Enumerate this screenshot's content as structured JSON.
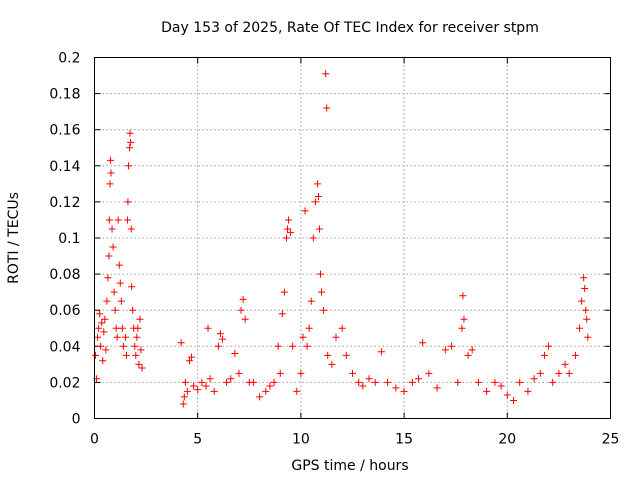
{
  "chart_data": {
    "type": "scatter",
    "title": "Day 153 of 2025, Rate Of TEC Index for receiver stpm",
    "xlabel": "GPS time / hours",
    "ylabel": "ROTI / TECUs",
    "xlim": [
      0,
      25
    ],
    "ylim": [
      0,
      0.2
    ],
    "xticks": [
      0,
      5,
      10,
      15,
      20,
      25
    ],
    "yticks": [
      0,
      0.02,
      0.04,
      0.06,
      0.08,
      0.1,
      0.12,
      0.14,
      0.16,
      0.18,
      0.2
    ],
    "grid": true,
    "legend": "none",
    "marker": "plus",
    "color": "#ff0000",
    "series": [
      {
        "points": [
          [
            0.05,
            0.035
          ],
          [
            0.1,
            0.022
          ],
          [
            0.15,
            0.045
          ],
          [
            0.2,
            0.05
          ],
          [
            0.25,
            0.058
          ],
          [
            0.3,
            0.04
          ],
          [
            0.35,
            0.053
          ],
          [
            0.4,
            0.032
          ],
          [
            0.45,
            0.048
          ],
          [
            0.5,
            0.055
          ],
          [
            0.55,
            0.038
          ],
          [
            0.6,
            0.065
          ],
          [
            0.65,
            0.078
          ],
          [
            0.7,
            0.09
          ],
          [
            0.72,
            0.11
          ],
          [
            0.75,
            0.13
          ],
          [
            0.78,
            0.143
          ],
          [
            0.8,
            0.136
          ],
          [
            0.85,
            0.105
          ],
          [
            0.9,
            0.095
          ],
          [
            0.95,
            0.07
          ],
          [
            1.0,
            0.06
          ],
          [
            1.05,
            0.05
          ],
          [
            1.1,
            0.045
          ],
          [
            1.15,
            0.11
          ],
          [
            1.2,
            0.085
          ],
          [
            1.25,
            0.075
          ],
          [
            1.3,
            0.065
          ],
          [
            1.35,
            0.05
          ],
          [
            1.4,
            0.04
          ],
          [
            1.5,
            0.045
          ],
          [
            1.55,
            0.035
          ],
          [
            1.6,
            0.11
          ],
          [
            1.62,
            0.12
          ],
          [
            1.65,
            0.14
          ],
          [
            1.7,
            0.15
          ],
          [
            1.72,
            0.158
          ],
          [
            1.75,
            0.153
          ],
          [
            1.78,
            0.105
          ],
          [
            1.8,
            0.073
          ],
          [
            1.85,
            0.06
          ],
          [
            1.9,
            0.05
          ],
          [
            1.95,
            0.04
          ],
          [
            2.0,
            0.035
          ],
          [
            2.05,
            0.045
          ],
          [
            2.1,
            0.05
          ],
          [
            2.15,
            0.03
          ],
          [
            2.2,
            0.055
          ],
          [
            2.25,
            0.038
          ],
          [
            2.3,
            0.028
          ],
          [
            4.2,
            0.042
          ],
          [
            4.3,
            0.008
          ],
          [
            4.35,
            0.012
          ],
          [
            4.4,
            0.02
          ],
          [
            4.5,
            0.015
          ],
          [
            4.6,
            0.032
          ],
          [
            4.7,
            0.034
          ],
          [
            4.8,
            0.018
          ],
          [
            5.0,
            0.016
          ],
          [
            5.2,
            0.02
          ],
          [
            5.4,
            0.018
          ],
          [
            5.5,
            0.05
          ],
          [
            5.6,
            0.022
          ],
          [
            5.8,
            0.015
          ],
          [
            6.0,
            0.04
          ],
          [
            6.1,
            0.047
          ],
          [
            6.2,
            0.044
          ],
          [
            6.4,
            0.02
          ],
          [
            6.6,
            0.022
          ],
          [
            6.8,
            0.036
          ],
          [
            7.0,
            0.025
          ],
          [
            7.1,
            0.06
          ],
          [
            7.2,
            0.066
          ],
          [
            7.3,
            0.055
          ],
          [
            7.5,
            0.02
          ],
          [
            7.7,
            0.02
          ],
          [
            8.0,
            0.012
          ],
          [
            8.3,
            0.015
          ],
          [
            8.5,
            0.018
          ],
          [
            8.7,
            0.02
          ],
          [
            8.9,
            0.04
          ],
          [
            9.0,
            0.025
          ],
          [
            9.1,
            0.058
          ],
          [
            9.2,
            0.07
          ],
          [
            9.3,
            0.1
          ],
          [
            9.35,
            0.105
          ],
          [
            9.4,
            0.11
          ],
          [
            9.5,
            0.103
          ],
          [
            9.6,
            0.04
          ],
          [
            9.8,
            0.015
          ],
          [
            10.0,
            0.025
          ],
          [
            10.1,
            0.045
          ],
          [
            10.2,
            0.115
          ],
          [
            10.3,
            0.04
          ],
          [
            10.4,
            0.05
          ],
          [
            10.5,
            0.065
          ],
          [
            10.6,
            0.1
          ],
          [
            10.7,
            0.12
          ],
          [
            10.8,
            0.13
          ],
          [
            10.85,
            0.123
          ],
          [
            10.9,
            0.105
          ],
          [
            10.95,
            0.08
          ],
          [
            11.0,
            0.07
          ],
          [
            11.1,
            0.06
          ],
          [
            11.2,
            0.191
          ],
          [
            11.25,
            0.172
          ],
          [
            11.3,
            0.035
          ],
          [
            11.5,
            0.03
          ],
          [
            11.7,
            0.045
          ],
          [
            12.0,
            0.05
          ],
          [
            12.2,
            0.035
          ],
          [
            12.5,
            0.025
          ],
          [
            12.8,
            0.02
          ],
          [
            13.0,
            0.018
          ],
          [
            13.3,
            0.022
          ],
          [
            13.6,
            0.02
          ],
          [
            13.9,
            0.037
          ],
          [
            14.2,
            0.02
          ],
          [
            14.6,
            0.017
          ],
          [
            15.0,
            0.015
          ],
          [
            15.4,
            0.02
          ],
          [
            15.7,
            0.022
          ],
          [
            15.9,
            0.042
          ],
          [
            16.2,
            0.025
          ],
          [
            16.6,
            0.017
          ],
          [
            17.0,
            0.038
          ],
          [
            17.3,
            0.04
          ],
          [
            17.6,
            0.02
          ],
          [
            17.8,
            0.05
          ],
          [
            17.85,
            0.068
          ],
          [
            17.9,
            0.055
          ],
          [
            18.1,
            0.035
          ],
          [
            18.3,
            0.038
          ],
          [
            18.6,
            0.02
          ],
          [
            19.0,
            0.015
          ],
          [
            19.4,
            0.02
          ],
          [
            19.7,
            0.018
          ],
          [
            20.0,
            0.013
          ],
          [
            20.3,
            0.01
          ],
          [
            20.6,
            0.02
          ],
          [
            21.0,
            0.015
          ],
          [
            21.3,
            0.022
          ],
          [
            21.6,
            0.025
          ],
          [
            21.8,
            0.035
          ],
          [
            22.0,
            0.04
          ],
          [
            22.2,
            0.02
          ],
          [
            22.5,
            0.025
          ],
          [
            22.8,
            0.03
          ],
          [
            23.0,
            0.025
          ],
          [
            23.3,
            0.035
          ],
          [
            23.5,
            0.05
          ],
          [
            23.6,
            0.065
          ],
          [
            23.7,
            0.078
          ],
          [
            23.75,
            0.072
          ],
          [
            23.8,
            0.06
          ],
          [
            23.85,
            0.055
          ],
          [
            23.9,
            0.045
          ]
        ]
      }
    ]
  }
}
